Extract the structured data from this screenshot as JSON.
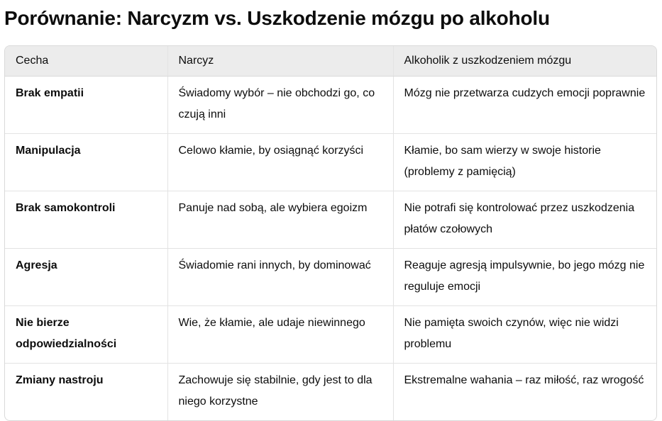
{
  "title": "Porównanie: Narcyzm vs. Uszkodzenie mózgu po alkoholu",
  "table": {
    "headers": [
      "Cecha",
      "Narcyz",
      "Alkoholik z uszkodzeniem mózgu"
    ],
    "rows": [
      [
        "Brak empatii",
        "Świadomy wybór – nie obchodzi go, co czują inni",
        "Mózg nie przetwarza cudzych emocji poprawnie"
      ],
      [
        "Manipulacja",
        "Celowo kłamie, by osiągnąć korzyści",
        "Kłamie, bo sam wierzy w swoje historie (problemy z pamięcią)"
      ],
      [
        "Brak samokontroli",
        "Panuje nad sobą, ale wybiera egoizm",
        "Nie potrafi się kontrolować przez uszkodzenia płatów czołowych"
      ],
      [
        "Agresja",
        "Świadomie rani innych, by dominować",
        "Reaguje agresją impulsywnie, bo jego mózg nie reguluje emocji"
      ],
      [
        "Nie bierze odpowiedzialności",
        "Wie, że kłamie, ale udaje niewinnego",
        "Nie pamięta swoich czynów, więc nie widzi problemu"
      ],
      [
        "Zmiany nastroju",
        "Zachowuje się stabilnie, gdy jest to dla niego korzystne",
        "Ekstremalne wahania – raz miłość, raz wrogość"
      ]
    ]
  }
}
